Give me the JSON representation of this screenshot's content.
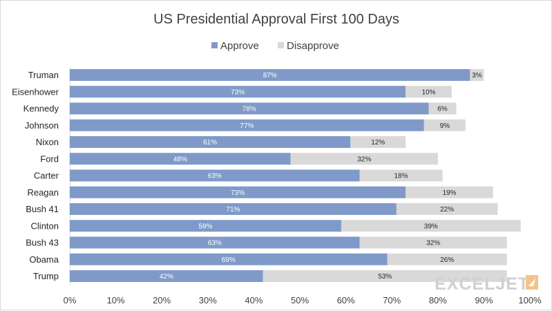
{
  "chart_data": {
    "type": "bar",
    "orientation": "horizontal",
    "stacked": true,
    "title": "US Presidential Approval First 100 Days",
    "categories": [
      "Truman",
      "Eisenhower",
      "Kennedy",
      "Johnson",
      "Nixon",
      "Ford",
      "Carter",
      "Reagan",
      "Bush 41",
      "Clinton",
      "Bush 43",
      "Obama",
      "Trump"
    ],
    "series": [
      {
        "name": "Approve",
        "color": "#7f9ac8",
        "values": [
          87,
          73,
          78,
          77,
          61,
          48,
          63,
          73,
          71,
          59,
          63,
          69,
          42
        ],
        "labels": [
          "87%",
          "73%",
          "78%",
          "77%",
          "61%",
          "48%",
          "63%",
          "73%",
          "71%",
          "59%",
          "63%",
          "69%",
          "42%"
        ]
      },
      {
        "name": "Disapprove",
        "color": "#d9d9d9",
        "values": [
          3,
          10,
          6,
          9,
          12,
          32,
          18,
          19,
          22,
          39,
          32,
          26,
          53
        ],
        "labels": [
          "3%",
          "10%",
          "6%",
          "9%",
          "12%",
          "32%",
          "18%",
          "19%",
          "22%",
          "39%",
          "32%",
          "26%",
          "53%"
        ]
      }
    ],
    "xlim": [
      0,
      100
    ],
    "xticks": [
      0,
      10,
      20,
      30,
      40,
      50,
      60,
      70,
      80,
      90,
      100
    ],
    "xtick_labels": [
      "0%",
      "10%",
      "20%",
      "30%",
      "40%",
      "50%",
      "60%",
      "70%",
      "80%",
      "90%",
      "100%"
    ],
    "xlabel": "",
    "ylabel": "",
    "grid": false,
    "legend_position": "top-center"
  },
  "watermark": {
    "text": "EXCELJET"
  }
}
